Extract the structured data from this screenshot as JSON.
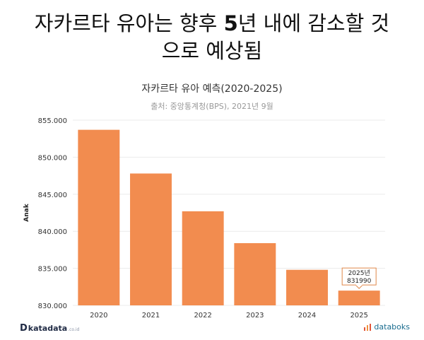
{
  "headline": {
    "line1_pre": "자카르타 유아는 향후 ",
    "line1_num": "5",
    "line1_post": "년 내에 감소할 것",
    "line2": "으로 예상됨"
  },
  "chart_data": {
    "type": "bar",
    "title": "자카르타 유아 예측(2020-2025)",
    "subtitle": "출처: 중앙통계청(BPS), 2021년 9월",
    "ylabel": "Anak",
    "xlabel": "",
    "categories": [
      "2020",
      "2021",
      "2022",
      "2023",
      "2024",
      "2025"
    ],
    "values": [
      853700,
      847800,
      842700,
      838400,
      834800,
      831990
    ],
    "ylim": [
      830000,
      855000
    ],
    "yticks": [
      830000,
      835000,
      840000,
      845000,
      850000,
      855000
    ],
    "ytick_labels": [
      "830.000",
      "835.000",
      "840.000",
      "845.000",
      "850.000",
      "855.000"
    ],
    "bar_color": "#f28c4f",
    "grid": true,
    "tooltip": {
      "index": 5,
      "line1": "2025년",
      "line2": "831990"
    }
  },
  "footer": {
    "left_mark": "D",
    "left_brand": "katadata",
    "left_tld": ".co.id",
    "right_brand": "databoks",
    "right_icon": "databoks-logo-icon",
    "right_color": "#e2563a"
  }
}
